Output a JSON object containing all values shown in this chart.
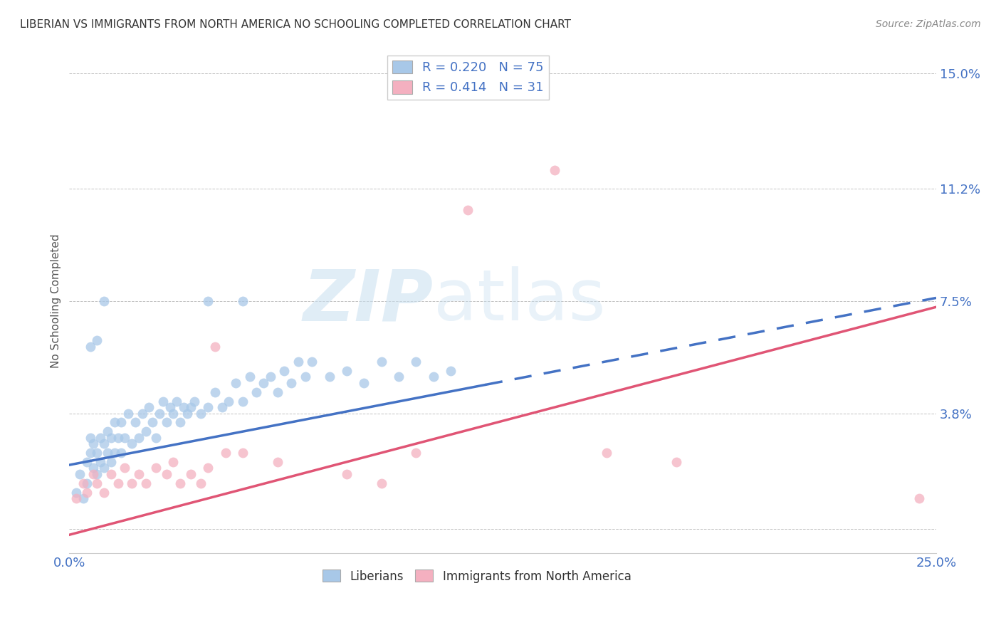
{
  "title": "LIBERIAN VS IMMIGRANTS FROM NORTH AMERICA NO SCHOOLING COMPLETED CORRELATION CHART",
  "source": "Source: ZipAtlas.com",
  "ylabel": "No Schooling Completed",
  "xlim": [
    0.0,
    0.25
  ],
  "ylim": [
    -0.008,
    0.158
  ],
  "yticks": [
    0.0,
    0.038,
    0.075,
    0.112,
    0.15
  ],
  "ytick_labels": [
    "",
    "3.8%",
    "7.5%",
    "11.2%",
    "15.0%"
  ],
  "xticks": [
    0.0,
    0.05,
    0.1,
    0.15,
    0.2,
    0.25
  ],
  "xtick_labels": [
    "0.0%",
    "",
    "",
    "",
    "",
    "25.0%"
  ],
  "legend_R1": "0.220",
  "legend_N1": "75",
  "legend_R2": "0.414",
  "legend_N2": "31",
  "color_blue": "#a8c8e8",
  "color_pink": "#f4b0c0",
  "line_blue": "#4472c4",
  "line_pink": "#e05575",
  "axis_label_color": "#4472c4",
  "blue_line_start_x": 0.0,
  "blue_line_solid_end_x": 0.12,
  "blue_line_end_x": 0.25,
  "blue_line_start_y": 0.021,
  "blue_line_slope": 0.22,
  "pink_line_start_x": 0.0,
  "pink_line_end_x": 0.25,
  "pink_line_start_y": -0.002,
  "pink_line_slope": 0.3,
  "blue_scatter_x": [
    0.002,
    0.003,
    0.004,
    0.005,
    0.005,
    0.006,
    0.006,
    0.007,
    0.007,
    0.008,
    0.008,
    0.009,
    0.009,
    0.01,
    0.01,
    0.011,
    0.011,
    0.012,
    0.012,
    0.013,
    0.013,
    0.014,
    0.015,
    0.015,
    0.016,
    0.017,
    0.018,
    0.019,
    0.02,
    0.021,
    0.022,
    0.023,
    0.024,
    0.025,
    0.026,
    0.027,
    0.028,
    0.029,
    0.03,
    0.031,
    0.032,
    0.033,
    0.034,
    0.035,
    0.036,
    0.038,
    0.04,
    0.042,
    0.044,
    0.046,
    0.048,
    0.05,
    0.052,
    0.054,
    0.056,
    0.058,
    0.06,
    0.062,
    0.064,
    0.066,
    0.068,
    0.07,
    0.075,
    0.08,
    0.085,
    0.09,
    0.095,
    0.1,
    0.105,
    0.11,
    0.006,
    0.008,
    0.01,
    0.04,
    0.05
  ],
  "blue_scatter_y": [
    0.012,
    0.018,
    0.01,
    0.015,
    0.022,
    0.025,
    0.03,
    0.02,
    0.028,
    0.018,
    0.025,
    0.022,
    0.03,
    0.02,
    0.028,
    0.025,
    0.032,
    0.022,
    0.03,
    0.025,
    0.035,
    0.03,
    0.025,
    0.035,
    0.03,
    0.038,
    0.028,
    0.035,
    0.03,
    0.038,
    0.032,
    0.04,
    0.035,
    0.03,
    0.038,
    0.042,
    0.035,
    0.04,
    0.038,
    0.042,
    0.035,
    0.04,
    0.038,
    0.04,
    0.042,
    0.038,
    0.04,
    0.045,
    0.04,
    0.042,
    0.048,
    0.042,
    0.05,
    0.045,
    0.048,
    0.05,
    0.045,
    0.052,
    0.048,
    0.055,
    0.05,
    0.055,
    0.05,
    0.052,
    0.048,
    0.055,
    0.05,
    0.055,
    0.05,
    0.052,
    0.06,
    0.062,
    0.075,
    0.075,
    0.075
  ],
  "pink_scatter_x": [
    0.002,
    0.004,
    0.005,
    0.007,
    0.008,
    0.01,
    0.012,
    0.014,
    0.016,
    0.018,
    0.02,
    0.022,
    0.025,
    0.028,
    0.03,
    0.032,
    0.035,
    0.038,
    0.04,
    0.042,
    0.045,
    0.05,
    0.06,
    0.08,
    0.09,
    0.1,
    0.115,
    0.14,
    0.155,
    0.175,
    0.245
  ],
  "pink_scatter_y": [
    0.01,
    0.015,
    0.012,
    0.018,
    0.015,
    0.012,
    0.018,
    0.015,
    0.02,
    0.015,
    0.018,
    0.015,
    0.02,
    0.018,
    0.022,
    0.015,
    0.018,
    0.015,
    0.02,
    0.06,
    0.025,
    0.025,
    0.022,
    0.018,
    0.015,
    0.025,
    0.105,
    0.118,
    0.025,
    0.022,
    0.01
  ]
}
